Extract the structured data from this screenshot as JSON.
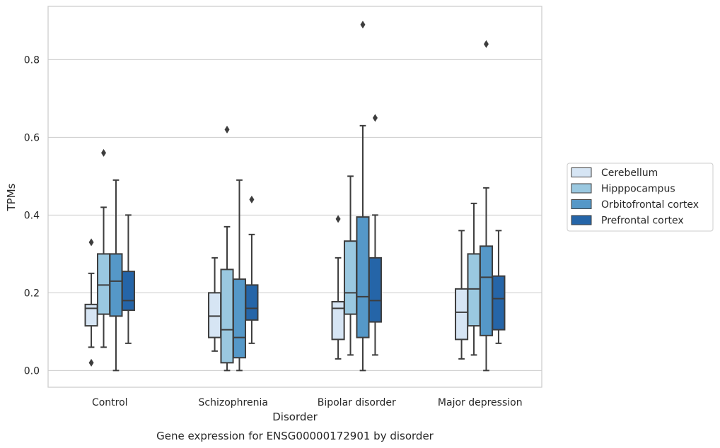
{
  "chart_data": {
    "type": "box",
    "caption": "Gene expression for ENSG00000172901 by disorder",
    "xlabel": "Disorder",
    "ylabel": "TPMs",
    "ylim": [
      -0.043,
      0.937
    ],
    "yticks": [
      0.0,
      0.2,
      0.4,
      0.6,
      0.8
    ],
    "ytick_labels": [
      "0.0",
      "0.2",
      "0.4",
      "0.6",
      "0.8"
    ],
    "grid": "horizontal",
    "legend_position": "center-right-outside",
    "categories": [
      "Control",
      "Schizophrenia",
      "Bipolar disorder",
      "Major depression"
    ],
    "series": [
      {
        "name": "Cerebellum",
        "color": "#d6e5f4",
        "boxes": [
          {
            "min": 0.06,
            "q1": 0.115,
            "median": 0.16,
            "q3": 0.17,
            "max": 0.25,
            "outliers": [
              0.33,
              0.02
            ]
          },
          {
            "min": 0.05,
            "q1": 0.085,
            "median": 0.14,
            "q3": 0.2,
            "max": 0.29,
            "outliers": []
          },
          {
            "min": 0.03,
            "q1": 0.08,
            "median": 0.16,
            "q3": 0.177,
            "max": 0.29,
            "outliers": [
              0.39
            ]
          },
          {
            "min": 0.03,
            "q1": 0.08,
            "median": 0.15,
            "q3": 0.21,
            "max": 0.36,
            "outliers": []
          }
        ]
      },
      {
        "name": "Hipppocampus",
        "color": "#9ac8e0",
        "boxes": [
          {
            "min": 0.06,
            "q1": 0.145,
            "median": 0.22,
            "q3": 0.3,
            "max": 0.42,
            "outliers": [
              0.56
            ]
          },
          {
            "min": 0.0,
            "q1": 0.02,
            "median": 0.105,
            "q3": 0.26,
            "max": 0.37,
            "outliers": [
              0.62
            ]
          },
          {
            "min": 0.04,
            "q1": 0.145,
            "median": 0.2,
            "q3": 0.333,
            "max": 0.5,
            "outliers": []
          },
          {
            "min": 0.04,
            "q1": 0.115,
            "median": 0.21,
            "q3": 0.3,
            "max": 0.43,
            "outliers": []
          }
        ]
      },
      {
        "name": "Orbitofrontal cortex",
        "color": "#5598c8",
        "boxes": [
          {
            "min": 0.0,
            "q1": 0.14,
            "median": 0.23,
            "q3": 0.3,
            "max": 0.49,
            "outliers": []
          },
          {
            "min": 0.0,
            "q1": 0.033,
            "median": 0.085,
            "q3": 0.235,
            "max": 0.49,
            "outliers": []
          },
          {
            "min": 0.0,
            "q1": 0.085,
            "median": 0.19,
            "q3": 0.395,
            "max": 0.63,
            "outliers": [
              0.89
            ]
          },
          {
            "min": 0.0,
            "q1": 0.09,
            "median": 0.24,
            "q3": 0.32,
            "max": 0.47,
            "outliers": [
              0.84
            ]
          }
        ]
      },
      {
        "name": "Prefrontal cortex",
        "color": "#2565a8",
        "boxes": [
          {
            "min": 0.07,
            "q1": 0.155,
            "median": 0.18,
            "q3": 0.255,
            "max": 0.4,
            "outliers": []
          },
          {
            "min": 0.07,
            "q1": 0.13,
            "median": 0.16,
            "q3": 0.22,
            "max": 0.35,
            "outliers": [
              0.44
            ]
          },
          {
            "min": 0.04,
            "q1": 0.125,
            "median": 0.18,
            "q3": 0.29,
            "max": 0.4,
            "outliers": [
              0.65
            ]
          },
          {
            "min": 0.07,
            "q1": 0.105,
            "median": 0.185,
            "q3": 0.243,
            "max": 0.36,
            "outliers": []
          }
        ]
      }
    ]
  }
}
